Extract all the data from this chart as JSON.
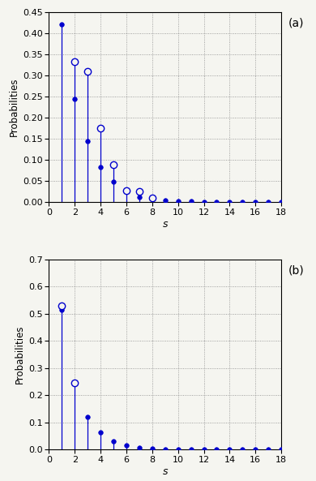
{
  "plot_a": {
    "label": "(a)",
    "ylim": [
      0,
      0.45
    ],
    "yticks": [
      0.0,
      0.05,
      0.1,
      0.15,
      0.2,
      0.25,
      0.3,
      0.35,
      0.4,
      0.45
    ],
    "x": [
      1,
      2,
      3,
      4,
      5,
      6,
      7,
      8,
      9,
      10,
      11,
      12,
      13,
      14,
      15,
      16,
      17,
      18
    ],
    "y_filled": [
      0.42,
      0.245,
      0.145,
      0.084,
      0.048,
      0.026,
      0.013,
      0.008,
      0.005,
      0.003,
      0.002,
      0.001,
      0.001,
      0.001,
      0.0005,
      0.0005,
      0.0002,
      0.0001
    ],
    "y_open": [
      0.0,
      0.333,
      0.31,
      0.175,
      0.09,
      0.027,
      0.025,
      0.011,
      0.0,
      0.0,
      0.0,
      0.0,
      0.0,
      0.0,
      0.0,
      0.0,
      0.0,
      0.0
    ]
  },
  "plot_b": {
    "label": "(b)",
    "ylim": [
      0,
      0.7
    ],
    "yticks": [
      0.0,
      0.1,
      0.2,
      0.3,
      0.4,
      0.5,
      0.6,
      0.7
    ],
    "x": [
      1,
      2,
      3,
      4,
      5,
      6,
      7,
      8,
      9,
      10,
      11,
      12,
      13,
      14,
      15,
      16,
      17,
      18
    ],
    "y_filled": [
      0.515,
      0.245,
      0.12,
      0.063,
      0.031,
      0.015,
      0.008,
      0.004,
      0.002,
      0.001,
      0.001,
      0.0005,
      0.0003,
      0.0002,
      0.0001,
      0.0001,
      5e-05,
      2e-05
    ],
    "y_open": [
      0.528,
      0.245,
      0.0,
      0.0,
      0.0,
      0.0,
      0.0,
      0.0,
      0.0,
      0.0,
      0.0,
      0.0,
      0.0,
      0.0,
      0.0,
      0.0,
      0.0,
      0.0
    ]
  },
  "color": "#0000cd",
  "xlabel": "s",
  "ylabel": "Probabilities",
  "xlim": [
    0,
    18
  ],
  "xticks": [
    0,
    2,
    4,
    6,
    8,
    10,
    12,
    14,
    16,
    18
  ],
  "bg_color": "#f5f5f0"
}
